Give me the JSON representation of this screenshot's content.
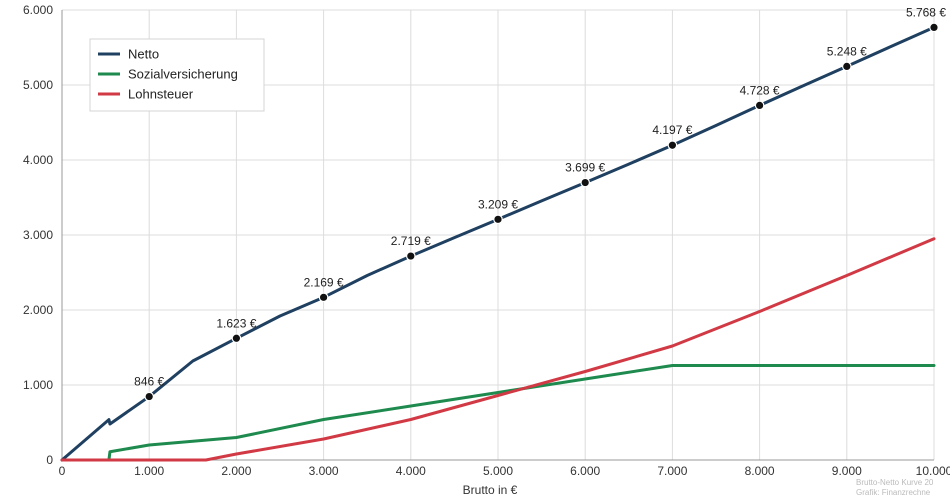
{
  "colors": {
    "netto": "#1f4060",
    "sozial": "#1e8a4e",
    "lohn": "#d13a45",
    "grid": "#dcdcdc"
  },
  "watermark": [
    "Brutto-Netto Kurve 20",
    "Grafik: Finanzrechne"
  ],
  "chart_data": {
    "type": "line",
    "title": "",
    "xlabel": "Brutto in €",
    "ylabel": "",
    "xlim": [
      0,
      10000
    ],
    "ylim": [
      0,
      6000
    ],
    "grid": true,
    "legend_position": "top-left",
    "x_ticks": [
      "0",
      "1.000",
      "2.000",
      "3.000",
      "4.000",
      "5.000",
      "6.000",
      "7.000",
      "8.000",
      "9.000",
      "10.000"
    ],
    "y_ticks": [
      "0",
      "1.000",
      "2.000",
      "3.000",
      "4.000",
      "5.000",
      "6.000"
    ],
    "series": [
      {
        "name": "Netto",
        "x": [
          0,
          500,
          538,
          550,
          1000,
          1500,
          2000,
          2500,
          3000,
          3500,
          4000,
          4500,
          5000,
          5500,
          6000,
          6500,
          7000,
          7500,
          8000,
          8500,
          9000,
          9500,
          10000
        ],
        "values": [
          0,
          500,
          538,
          480,
          846,
          1320,
          1623,
          1920,
          2169,
          2460,
          2719,
          2965,
          3209,
          3455,
          3699,
          3945,
          4197,
          4460,
          4728,
          4990,
          5248,
          5510,
          5768
        ]
      },
      {
        "name": "Sozialversicherung",
        "x": [
          538,
          550,
          1000,
          2000,
          3000,
          4000,
          5000,
          6000,
          7000,
          8000,
          9000,
          10000
        ],
        "values": [
          0,
          110,
          200,
          300,
          540,
          720,
          900,
          1080,
          1260,
          1260,
          1260,
          1260
        ]
      },
      {
        "name": "Lohnsteuer",
        "x": [
          0,
          1650,
          2000,
          3000,
          4000,
          5000,
          6000,
          7000,
          8000,
          9000,
          10000
        ],
        "values": [
          0,
          0,
          80,
          280,
          540,
          860,
          1180,
          1520,
          1980,
          2460,
          2950
        ]
      }
    ],
    "annotations": [
      {
        "x": 1000,
        "y": 846,
        "text": "846 €"
      },
      {
        "x": 2000,
        "y": 1623,
        "text": "1.623 €"
      },
      {
        "x": 3000,
        "y": 2169,
        "text": "2.169 €"
      },
      {
        "x": 4000,
        "y": 2719,
        "text": "2.719 €"
      },
      {
        "x": 5000,
        "y": 3209,
        "text": "3.209 €"
      },
      {
        "x": 6000,
        "y": 3699,
        "text": "3.699 €"
      },
      {
        "x": 7000,
        "y": 4197,
        "text": "4.197 €"
      },
      {
        "x": 8000,
        "y": 4728,
        "text": "4.728 €"
      },
      {
        "x": 9000,
        "y": 5248,
        "text": "5.248 €"
      },
      {
        "x": 10000,
        "y": 5768,
        "text": "5.768 €"
      }
    ]
  }
}
